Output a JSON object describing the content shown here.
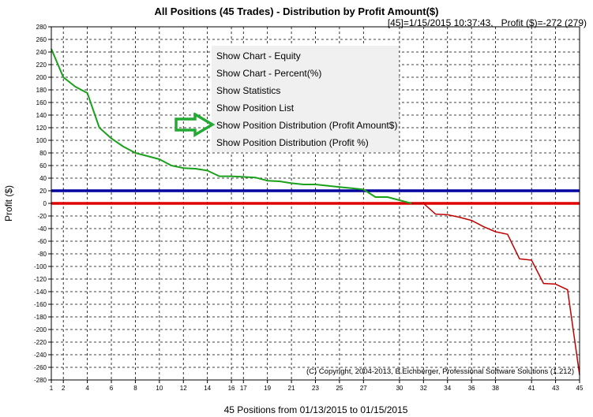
{
  "header": {
    "title": "All Positions (45 Trades) - Distribution by Profit Amount($)",
    "info": "[45]=1/15/2015 10:37:43,   Profit ($)=-272 (279)"
  },
  "context_menu": {
    "items": [
      {
        "label": "Show Chart - Equity"
      },
      {
        "label": "Show Chart - Percent(%)"
      },
      {
        "label": "Show Statistics"
      },
      {
        "label": "Show Position List"
      },
      {
        "label": "Show Position Distribution (Profit Amount$)",
        "highlighted_by_arrow": true
      },
      {
        "label": "Show Position Distribution (Profit %)"
      }
    ]
  },
  "colors": {
    "profit_line": "#1aa01a",
    "loss_line": "#c00000",
    "zero_line": "#e00000",
    "average_line": "#0000a0",
    "arrow": "#22aa33",
    "grid": "#000000",
    "menu_bg": "#f0f0f0"
  },
  "chart_data": {
    "type": "line",
    "title": "All Positions (45 Trades) - Distribution by Profit Amount($)",
    "xlabel": "45 Positions from 01/13/2015 to 01/15/2015",
    "ylabel": "Profit ($)",
    "xlim": [
      1,
      45
    ],
    "ylim": [
      -280,
      280
    ],
    "y_ticks": [
      280,
      260,
      240,
      220,
      200,
      180,
      160,
      140,
      120,
      100,
      80,
      60,
      40,
      20,
      0,
      -20,
      -40,
      -60,
      -80,
      -100,
      -120,
      -140,
      -160,
      -180,
      -200,
      -220,
      -240,
      -260,
      -280
    ],
    "x_ticks": [
      1,
      2,
      4,
      6,
      8,
      10,
      12,
      14,
      16,
      17,
      19,
      21,
      23,
      25,
      27,
      30,
      32,
      34,
      36,
      38,
      41,
      43,
      45
    ],
    "grid": true,
    "series": [
      {
        "color_key": "profit_line",
        "x": [
          1,
          2,
          3,
          4,
          5,
          6,
          7,
          8,
          9,
          10,
          11,
          12,
          13,
          14,
          15,
          16,
          17,
          18,
          19,
          20,
          21,
          22,
          23,
          24,
          25,
          26,
          27,
          28,
          29,
          30,
          31
        ],
        "values": [
          245,
          200,
          185,
          175,
          120,
          103,
          90,
          80,
          75,
          70,
          60,
          56,
          55,
          52,
          43,
          43,
          42,
          41,
          36,
          35,
          32,
          30,
          30,
          28,
          26,
          24,
          22,
          10,
          10,
          5,
          0
        ]
      },
      {
        "color_key": "loss_line",
        "x": [
          31,
          32,
          33,
          34,
          35,
          36,
          37,
          38,
          39,
          40,
          41,
          42,
          43,
          44,
          45
        ],
        "values": [
          0,
          0,
          -17,
          -18,
          -22,
          -27,
          -37,
          -45,
          -49,
          -88,
          -90,
          -127,
          -128,
          -137,
          -272
        ]
      }
    ],
    "reference_lines": [
      {
        "y": 20,
        "color_key": "average_line"
      },
      {
        "y": 0,
        "color_key": "zero_line"
      }
    ],
    "annotation": "(C) Copyright, 2004-2013, B.Eichberger, Professional Software Solutions (1.212)"
  }
}
